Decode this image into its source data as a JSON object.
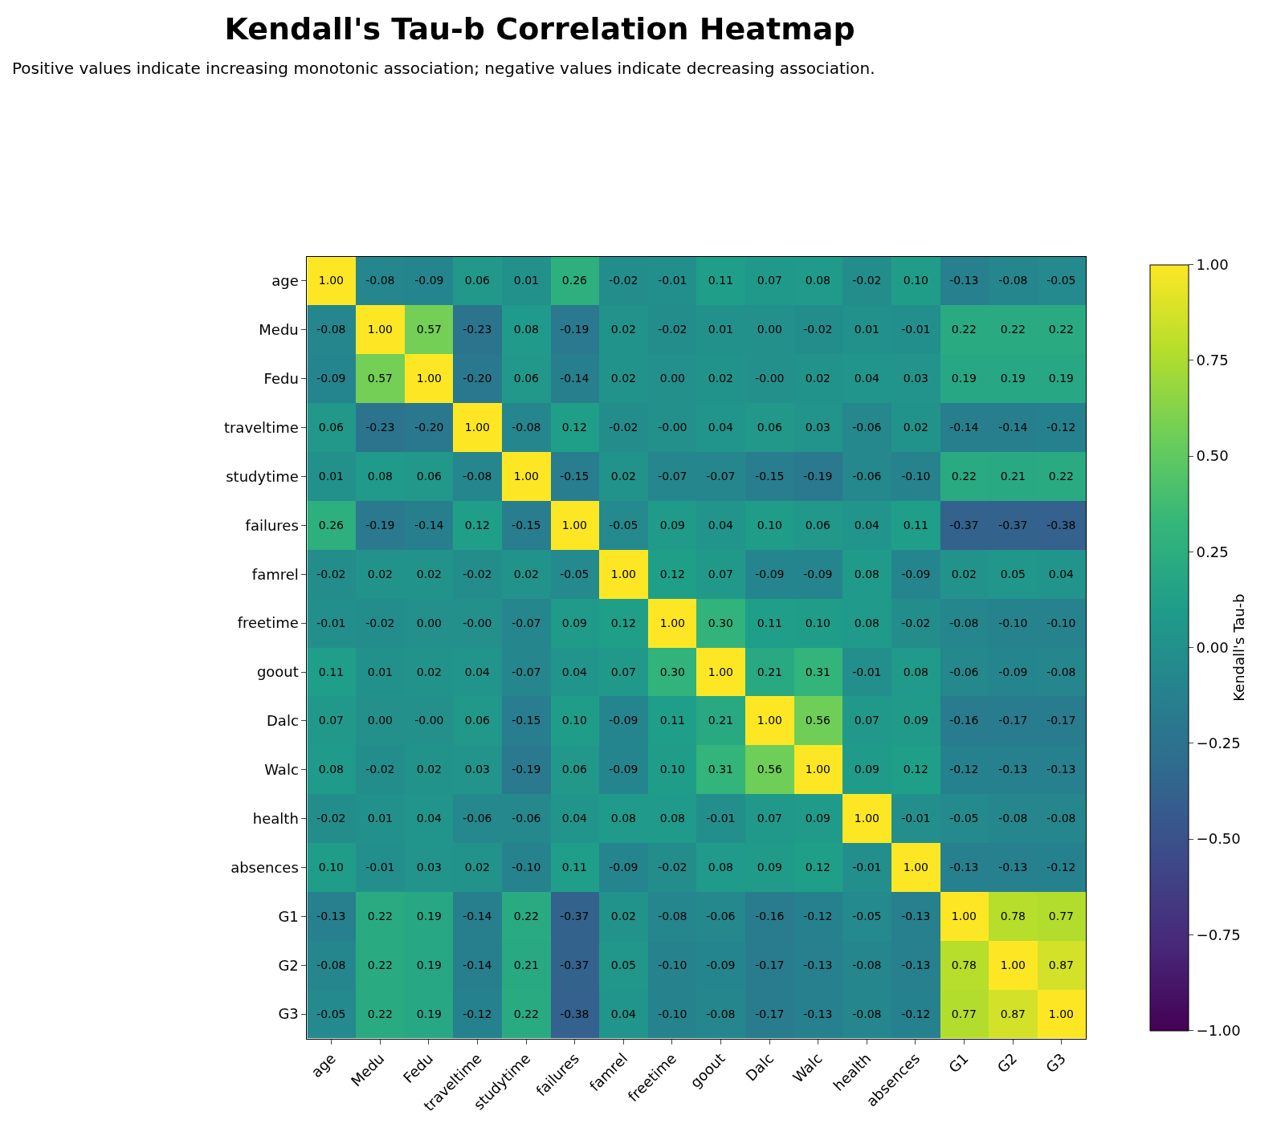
{
  "chart_data": {
    "type": "heatmap",
    "title": "Kendall's Tau-b Correlation Heatmap",
    "subtitle": "Positive values indicate increasing monotonic association; negative values indicate decreasing association.",
    "clabel": "Kendall's Tau-b",
    "categories": [
      "age",
      "Medu",
      "Fedu",
      "traveltime",
      "studytime",
      "failures",
      "famrel",
      "freetime",
      "goout",
      "Dalc",
      "Walc",
      "health",
      "absences",
      "G1",
      "G2",
      "G3"
    ],
    "y_categories": [
      "age",
      "Medu",
      "Fedu",
      "traveltime",
      "studytime",
      "failures",
      "famrel",
      "freetime",
      "goout",
      "Dalc",
      "Walc",
      "health",
      "absences",
      "G1",
      "G2",
      "G3"
    ],
    "cells": [
      [
        1.0,
        -0.08,
        -0.09,
        0.06,
        0.01,
        0.26,
        -0.02,
        -0.01,
        0.11,
        0.07,
        0.08,
        -0.02,
        0.1,
        -0.13,
        -0.08,
        -0.05
      ],
      [
        -0.08,
        1.0,
        0.57,
        -0.23,
        0.08,
        -0.19,
        0.02,
        -0.02,
        0.01,
        0.0,
        -0.02,
        0.01,
        -0.01,
        0.22,
        0.22,
        0.22
      ],
      [
        -0.09,
        0.57,
        1.0,
        -0.2,
        0.06,
        -0.14,
        0.02,
        0.0,
        0.02,
        -0.0,
        0.02,
        0.04,
        0.03,
        0.19,
        0.19,
        0.19
      ],
      [
        0.06,
        -0.23,
        -0.2,
        1.0,
        -0.08,
        0.12,
        -0.02,
        -0.0,
        0.04,
        0.06,
        0.03,
        -0.06,
        0.02,
        -0.14,
        -0.14,
        -0.12
      ],
      [
        0.01,
        0.08,
        0.06,
        -0.08,
        1.0,
        -0.15,
        0.02,
        -0.07,
        -0.07,
        -0.15,
        -0.19,
        -0.06,
        -0.1,
        0.22,
        0.21,
        0.22
      ],
      [
        0.26,
        -0.19,
        -0.14,
        0.12,
        -0.15,
        1.0,
        -0.05,
        0.09,
        0.04,
        0.1,
        0.06,
        0.04,
        0.11,
        -0.37,
        -0.37,
        -0.38
      ],
      [
        -0.02,
        0.02,
        0.02,
        -0.02,
        0.02,
        -0.05,
        1.0,
        0.12,
        0.07,
        -0.09,
        -0.09,
        0.08,
        -0.09,
        0.02,
        0.05,
        0.04
      ],
      [
        -0.01,
        -0.02,
        0.0,
        -0.0,
        -0.07,
        0.09,
        0.12,
        1.0,
        0.3,
        0.11,
        0.1,
        0.08,
        -0.02,
        -0.08,
        -0.1,
        -0.1
      ],
      [
        0.11,
        0.01,
        0.02,
        0.04,
        -0.07,
        0.04,
        0.07,
        0.3,
        1.0,
        0.21,
        0.31,
        -0.01,
        0.08,
        -0.06,
        -0.09,
        -0.08
      ],
      [
        0.07,
        0.0,
        -0.0,
        0.06,
        -0.15,
        0.1,
        -0.09,
        0.11,
        0.21,
        1.0,
        0.56,
        0.07,
        0.09,
        -0.16,
        -0.17,
        -0.17
      ],
      [
        0.08,
        -0.02,
        0.02,
        0.03,
        -0.19,
        0.06,
        -0.09,
        0.1,
        0.31,
        0.56,
        1.0,
        0.09,
        0.12,
        -0.12,
        -0.13,
        -0.13
      ],
      [
        -0.02,
        0.01,
        0.04,
        -0.06,
        -0.06,
        0.04,
        0.08,
        0.08,
        -0.01,
        0.07,
        0.09,
        1.0,
        -0.01,
        -0.05,
        -0.08,
        -0.08
      ],
      [
        0.1,
        -0.01,
        0.03,
        0.02,
        -0.1,
        0.11,
        -0.09,
        -0.02,
        0.08,
        0.09,
        0.12,
        -0.01,
        1.0,
        -0.13,
        -0.13,
        -0.12
      ],
      [
        -0.13,
        0.22,
        0.19,
        -0.14,
        0.22,
        -0.37,
        0.02,
        -0.08,
        -0.06,
        -0.16,
        -0.12,
        -0.05,
        -0.13,
        1.0,
        0.78,
        0.77
      ],
      [
        -0.08,
        0.22,
        0.19,
        -0.14,
        0.21,
        -0.37,
        0.05,
        -0.1,
        -0.09,
        -0.17,
        -0.13,
        -0.08,
        -0.13,
        0.78,
        1.0,
        0.87
      ],
      [
        -0.05,
        0.22,
        0.19,
        -0.12,
        0.22,
        -0.38,
        0.04,
        -0.1,
        -0.08,
        -0.17,
        -0.13,
        -0.08,
        -0.12,
        0.77,
        0.87,
        1.0
      ]
    ],
    "cell_labels": [
      [
        "1.00",
        "-0.08",
        "-0.09",
        "0.06",
        "0.01",
        "0.26",
        "-0.02",
        "-0.01",
        "0.11",
        "0.07",
        "0.08",
        "-0.02",
        "0.10",
        "-0.13",
        "-0.08",
        "-0.05"
      ],
      [
        "-0.08",
        "1.00",
        "0.57",
        "-0.23",
        "0.08",
        "-0.19",
        "0.02",
        "-0.02",
        "0.01",
        "0.00",
        "-0.02",
        "0.01",
        "-0.01",
        "0.22",
        "0.22",
        "0.22"
      ],
      [
        "-0.09",
        "0.57",
        "1.00",
        "-0.20",
        "0.06",
        "-0.14",
        "0.02",
        "0.00",
        "0.02",
        "-0.00",
        "0.02",
        "0.04",
        "0.03",
        "0.19",
        "0.19",
        "0.19"
      ],
      [
        "0.06",
        "-0.23",
        "-0.20",
        "1.00",
        "-0.08",
        "0.12",
        "-0.02",
        "-0.00",
        "0.04",
        "0.06",
        "0.03",
        "-0.06",
        "0.02",
        "-0.14",
        "-0.14",
        "-0.12"
      ],
      [
        "0.01",
        "0.08",
        "0.06",
        "-0.08",
        "1.00",
        "-0.15",
        "0.02",
        "-0.07",
        "-0.07",
        "-0.15",
        "-0.19",
        "-0.06",
        "-0.10",
        "0.22",
        "0.21",
        "0.22"
      ],
      [
        "0.26",
        "-0.19",
        "-0.14",
        "0.12",
        "-0.15",
        "1.00",
        "-0.05",
        "0.09",
        "0.04",
        "0.10",
        "0.06",
        "0.04",
        "0.11",
        "-0.37",
        "-0.37",
        "-0.38"
      ],
      [
        "-0.02",
        "0.02",
        "0.02",
        "-0.02",
        "0.02",
        "-0.05",
        "1.00",
        "0.12",
        "0.07",
        "-0.09",
        "-0.09",
        "0.08",
        "-0.09",
        "0.02",
        "0.05",
        "0.04"
      ],
      [
        "-0.01",
        "-0.02",
        "0.00",
        "-0.00",
        "-0.07",
        "0.09",
        "0.12",
        "1.00",
        "0.30",
        "0.11",
        "0.10",
        "0.08",
        "-0.02",
        "-0.08",
        "-0.10",
        "-0.10"
      ],
      [
        "0.11",
        "0.01",
        "0.02",
        "0.04",
        "-0.07",
        "0.04",
        "0.07",
        "0.30",
        "1.00",
        "0.21",
        "0.31",
        "-0.01",
        "0.08",
        "-0.06",
        "-0.09",
        "-0.08"
      ],
      [
        "0.07",
        "0.00",
        "-0.00",
        "0.06",
        "-0.15",
        "0.10",
        "-0.09",
        "0.11",
        "0.21",
        "1.00",
        "0.56",
        "0.07",
        "0.09",
        "-0.16",
        "-0.17",
        "-0.17"
      ],
      [
        "0.08",
        "-0.02",
        "0.02",
        "0.03",
        "-0.19",
        "0.06",
        "-0.09",
        "0.10",
        "0.31",
        "0.56",
        "1.00",
        "0.09",
        "0.12",
        "-0.12",
        "-0.13",
        "-0.13"
      ],
      [
        "-0.02",
        "0.01",
        "0.04",
        "-0.06",
        "-0.06",
        "0.04",
        "0.08",
        "0.08",
        "-0.01",
        "0.07",
        "0.09",
        "1.00",
        "-0.01",
        "-0.05",
        "-0.08",
        "-0.08"
      ],
      [
        "0.10",
        "-0.01",
        "0.03",
        "0.02",
        "-0.10",
        "0.11",
        "-0.09",
        "-0.02",
        "0.08",
        "0.09",
        "0.12",
        "-0.01",
        "1.00",
        "-0.13",
        "-0.13",
        "-0.12"
      ],
      [
        "-0.13",
        "0.22",
        "0.19",
        "-0.14",
        "0.22",
        "-0.37",
        "0.02",
        "-0.08",
        "-0.06",
        "-0.16",
        "-0.12",
        "-0.05",
        "-0.13",
        "1.00",
        "0.78",
        "0.77"
      ],
      [
        "-0.08",
        "0.22",
        "0.19",
        "-0.14",
        "0.21",
        "-0.37",
        "0.05",
        "-0.10",
        "-0.09",
        "-0.17",
        "-0.13",
        "-0.08",
        "-0.13",
        "0.78",
        "1.00",
        "0.87"
      ],
      [
        "-0.05",
        "0.22",
        "0.19",
        "-0.12",
        "0.22",
        "-0.38",
        "0.04",
        "-0.10",
        "-0.08",
        "-0.17",
        "-0.13",
        "-0.08",
        "-0.12",
        "0.77",
        "0.87",
        "1.00"
      ]
    ],
    "clim": [
      -1,
      1
    ],
    "cticks": [
      {
        "value": -1,
        "label": "−1.00"
      },
      {
        "value": -0.75,
        "label": "−0.75"
      },
      {
        "value": -0.5,
        "label": "−0.50"
      },
      {
        "value": -0.25,
        "label": "−0.25"
      },
      {
        "value": 0,
        "label": "0.00"
      },
      {
        "value": 0.25,
        "label": "0.25"
      },
      {
        "value": 0.5,
        "label": "0.50"
      },
      {
        "value": 0.75,
        "label": "0.75"
      },
      {
        "value": 1,
        "label": "1.00"
      }
    ],
    "data_labels": true
  }
}
